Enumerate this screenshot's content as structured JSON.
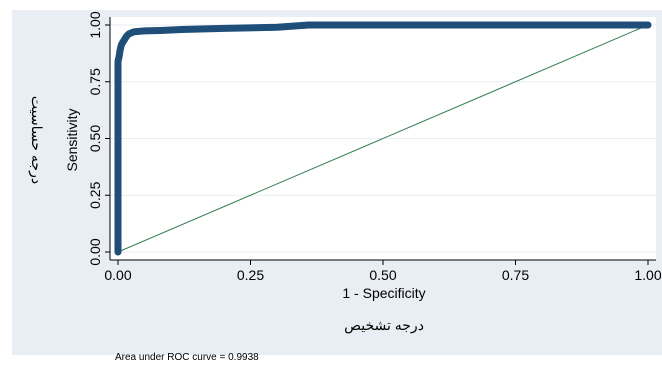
{
  "chart_data": {
    "type": "line",
    "title": "",
    "xlabel": "1 - Specificity",
    "ylabel": "Sensitivity",
    "outer_xlabel": "درجه تشخیص",
    "outer_ylabel": "درجه حساسیت",
    "note": "Area under ROC curve = 0.9938",
    "xlim": [
      0,
      1
    ],
    "ylim": [
      0,
      1
    ],
    "x_ticks": [
      "0.00",
      "0.25",
      "0.50",
      "0.75",
      "1.00"
    ],
    "y_ticks": [
      "0.00",
      "0.25",
      "0.50",
      "0.75",
      "1.00"
    ],
    "grid": "horizontal",
    "legend": "none",
    "colors": {
      "background": "#e8eef3",
      "plot_area": "#ffffff",
      "grid": "#e8eef3",
      "roc_curve": "#1f4e79",
      "reference_line": "#2e7d4f"
    },
    "series": [
      {
        "kind": "roc",
        "x": [
          0.0,
          0.0,
          0.0,
          0.002,
          0.004,
          0.006,
          0.008,
          0.012,
          0.016,
          0.02,
          0.03,
          0.05,
          0.08,
          0.12,
          0.2,
          0.3,
          0.36,
          0.5,
          0.7,
          1.0
        ],
        "y": [
          0.0,
          0.5,
          0.84,
          0.86,
          0.89,
          0.91,
          0.92,
          0.935,
          0.95,
          0.96,
          0.97,
          0.974,
          0.976,
          0.98,
          0.985,
          0.99,
          1.0,
          1.0,
          1.0,
          1.0
        ]
      },
      {
        "kind": "reference",
        "x": [
          0,
          1
        ],
        "y": [
          0,
          1
        ]
      }
    ]
  }
}
